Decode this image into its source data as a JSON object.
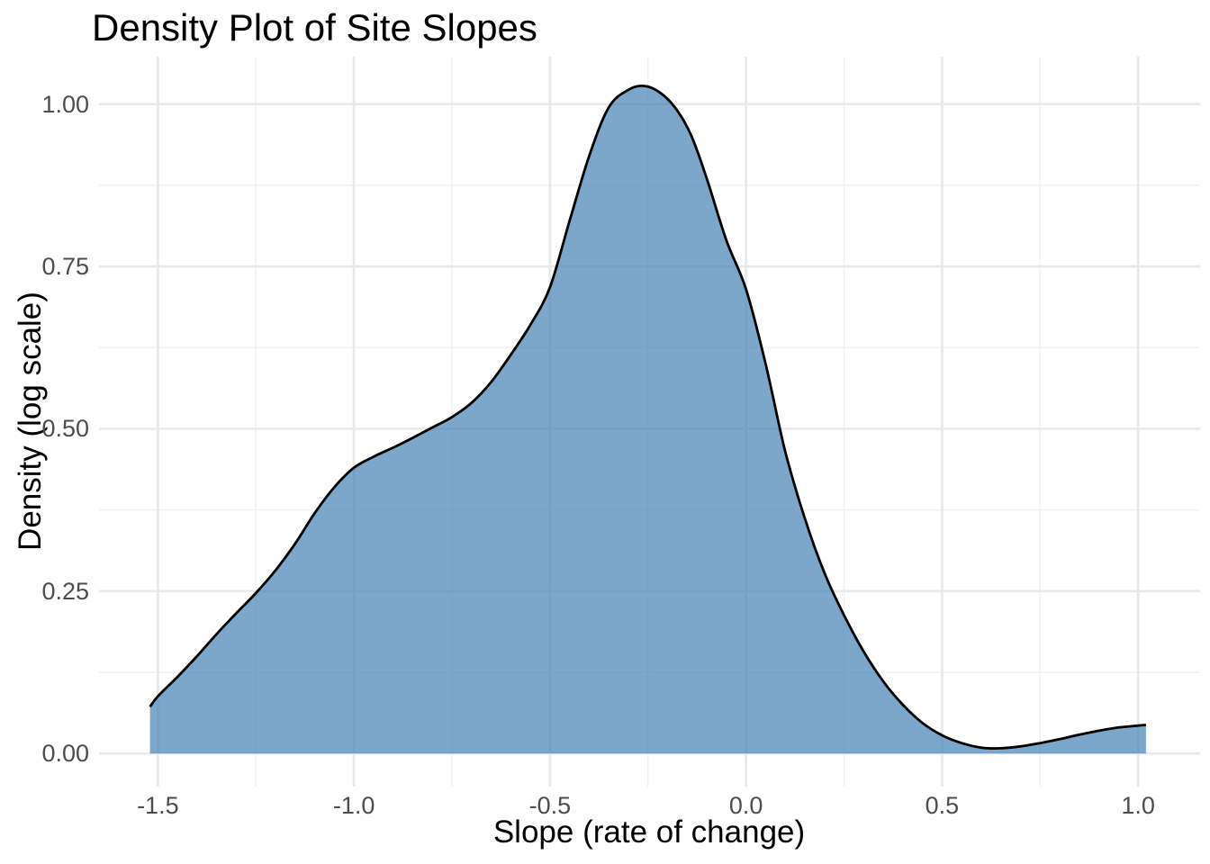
{
  "chart_data": {
    "type": "area",
    "title": "Density Plot of Site Slopes",
    "xlabel": "Slope (rate of change)",
    "ylabel": "Density (log scale)",
    "x_ticks": [
      -1.5,
      -1.0,
      -0.5,
      0.0,
      0.5,
      1.0
    ],
    "x_tick_labels": [
      "-1.5",
      "-1.0",
      "-0.5",
      "0.0",
      "0.5",
      "1.0"
    ],
    "x_minor_ticks": [
      -1.25,
      -0.75,
      -0.25,
      0.25,
      0.75
    ],
    "y_ticks": [
      0.0,
      0.25,
      0.5,
      0.75,
      1.0
    ],
    "y_tick_labels": [
      "0.00",
      "0.25",
      "0.50",
      "0.75",
      "1.00"
    ],
    "y_minor_ticks": [
      0.125,
      0.375,
      0.625,
      0.875
    ],
    "xlim": [
      -1.65,
      1.158
    ],
    "ylim": [
      -0.051,
      1.073
    ],
    "grid": true,
    "legend_position": "none",
    "series": [
      {
        "name": "site-slope-density",
        "peak": {
          "x": -0.26,
          "density": 1.028
        },
        "points": [
          [
            -1.52,
            0.072
          ],
          [
            -1.5,
            0.088
          ],
          [
            -1.45,
            0.118
          ],
          [
            -1.4,
            0.15
          ],
          [
            -1.35,
            0.184
          ],
          [
            -1.3,
            0.216
          ],
          [
            -1.25,
            0.247
          ],
          [
            -1.2,
            0.282
          ],
          [
            -1.15,
            0.323
          ],
          [
            -1.1,
            0.37
          ],
          [
            -1.05,
            0.41
          ],
          [
            -1.0,
            0.44
          ],
          [
            -0.95,
            0.457
          ],
          [
            -0.9,
            0.471
          ],
          [
            -0.85,
            0.486
          ],
          [
            -0.8,
            0.502
          ],
          [
            -0.75,
            0.518
          ],
          [
            -0.7,
            0.54
          ],
          [
            -0.65,
            0.572
          ],
          [
            -0.6,
            0.614
          ],
          [
            -0.55,
            0.66
          ],
          [
            -0.5,
            0.718
          ],
          [
            -0.45,
            0.82
          ],
          [
            -0.4,
            0.92
          ],
          [
            -0.35,
            0.995
          ],
          [
            -0.3,
            1.022
          ],
          [
            -0.26,
            1.028
          ],
          [
            -0.22,
            1.018
          ],
          [
            -0.18,
            0.994
          ],
          [
            -0.14,
            0.952
          ],
          [
            -0.1,
            0.885
          ],
          [
            -0.05,
            0.79
          ],
          [
            0.0,
            0.715
          ],
          [
            0.05,
            0.6
          ],
          [
            0.1,
            0.465
          ],
          [
            0.15,
            0.362
          ],
          [
            0.2,
            0.278
          ],
          [
            0.25,
            0.213
          ],
          [
            0.3,
            0.157
          ],
          [
            0.35,
            0.111
          ],
          [
            0.4,
            0.075
          ],
          [
            0.45,
            0.047
          ],
          [
            0.5,
            0.028
          ],
          [
            0.55,
            0.016
          ],
          [
            0.6,
            0.009
          ],
          [
            0.65,
            0.008
          ],
          [
            0.7,
            0.011
          ],
          [
            0.75,
            0.016
          ],
          [
            0.8,
            0.022
          ],
          [
            0.85,
            0.029
          ],
          [
            0.9,
            0.035
          ],
          [
            0.95,
            0.04
          ],
          [
            1.0,
            0.043
          ],
          [
            1.02,
            0.044
          ]
        ]
      }
    ],
    "colors": {
      "fill": "rgba(70,130,180,0.7)",
      "fill_on_white_hex": "#7EA7CA",
      "line": "#000000",
      "grid_major": "#E8E8E8",
      "grid_minor": "#F1F1F1",
      "axis_text": "#4D4D4D",
      "title_text": "#000000",
      "background": "#FFFFFF"
    }
  }
}
